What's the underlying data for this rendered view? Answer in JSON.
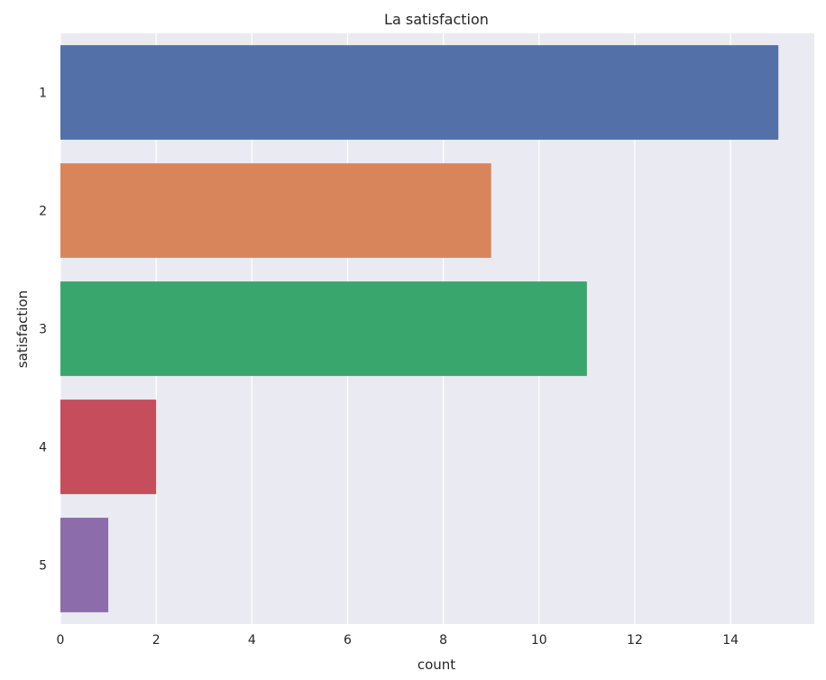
{
  "chart_data": {
    "type": "bar",
    "orientation": "horizontal",
    "title": "La satisfaction",
    "xlabel": "count",
    "ylabel": "satisfaction",
    "categories": [
      "1",
      "2",
      "3",
      "4",
      "5"
    ],
    "values": [
      15,
      9,
      11,
      2,
      1
    ],
    "colors": [
      "#5470a8",
      "#d9855c",
      "#39a76d",
      "#c64d5b",
      "#8c6caa"
    ],
    "xlim": [
      0,
      15.75
    ],
    "xticks": [
      0,
      2,
      4,
      6,
      8,
      10,
      12,
      14
    ],
    "grid": true,
    "legend": "none",
    "background": "#eaeaf2"
  }
}
